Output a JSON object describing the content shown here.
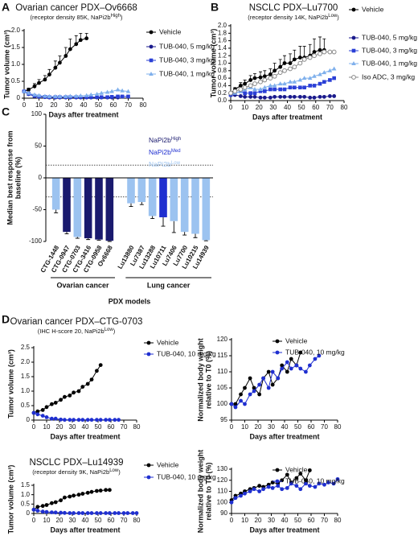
{
  "chart_data": [
    {
      "type": "line",
      "panel": "A",
      "title": "Ovarian cancer PDX–Ov6668",
      "subtitle": "(receptor density 85K, NaPi2b",
      "subtitle_sup": "High",
      "subtitle_end": ")",
      "xlabel": "Days after treatment",
      "ylabel": [
        "Tumor volume (cm³)"
      ],
      "x": [
        0,
        3,
        7,
        10,
        14,
        17,
        21,
        24,
        28,
        31,
        35,
        38,
        42,
        45,
        49,
        52,
        56,
        59,
        63,
        66,
        70
      ],
      "xlim": [
        0,
        80
      ],
      "xticks": [
        0,
        10,
        20,
        30,
        40,
        50,
        60,
        70,
        80
      ],
      "ylim": [
        0,
        2
      ],
      "yticks": [
        0,
        0.5,
        {
          "value": 1,
          "label": "1.0"
        },
        1.5,
        {
          "value": 2,
          "label": "2.0"
        }
      ],
      "series": [
        {
          "name": "Vehicle",
          "color": "#000000",
          "marker": "circle",
          "values": [
            0.2,
            0.25,
            0.35,
            0.45,
            0.55,
            0.7,
            0.9,
            1.05,
            1.25,
            1.45,
            1.6,
            1.72,
            1.77,
            null,
            null,
            null,
            null,
            null,
            null,
            null,
            null
          ],
          "errors": [
            0.02,
            0.05,
            0.08,
            0.1,
            0.12,
            0.15,
            0.2,
            0.2,
            0.25,
            0.3,
            0.25,
            0.2,
            0.15,
            null,
            null,
            null,
            null,
            null,
            null,
            null,
            null
          ]
        },
        {
          "name": "TUB-040, 5 mg/kg",
          "color": "#1a1a8c",
          "marker": "circle",
          "values": [
            0.2,
            0.12,
            0.06,
            0.04,
            0.03,
            0.02,
            0.02,
            0.02,
            0.02,
            0.02,
            0.02,
            0.02,
            0.02,
            0.02,
            0.02,
            0.02,
            0.02,
            0.02,
            0.02,
            null,
            null
          ]
        },
        {
          "name": "TUB-040, 3 mg/kg",
          "color": "#2a3fd6",
          "marker": "square",
          "values": [
            0.2,
            0.13,
            0.07,
            0.05,
            0.04,
            0.03,
            0.03,
            0.03,
            0.03,
            0.03,
            0.03,
            0.03,
            0.03,
            0.03,
            0.03,
            0.03,
            0.03,
            0.04,
            0.05,
            0.05,
            0.05
          ]
        },
        {
          "name": "TUB-040, 1 mg/kg",
          "color": "#7fb0ec",
          "marker": "triangle",
          "values": [
            0.2,
            0.15,
            0.1,
            0.08,
            0.06,
            0.05,
            0.05,
            0.05,
            0.05,
            0.06,
            0.06,
            0.07,
            0.08,
            0.1,
            0.12,
            0.15,
            0.18,
            0.2,
            0.25,
            0.22,
            0.2
          ]
        }
      ]
    },
    {
      "type": "line",
      "panel": "B",
      "title": "NSCLC PDX–Lu7700",
      "subtitle": "(receptor density 14K, NaPi2b",
      "subtitle_sup": "Low",
      "subtitle_end": ")",
      "xlabel": "Days after treatment",
      "ylabel": [
        "Tumor volume (cm³)"
      ],
      "x": [
        0,
        3,
        7,
        10,
        14,
        17,
        21,
        24,
        28,
        31,
        35,
        38,
        42,
        45,
        49,
        52,
        56,
        59,
        63,
        66,
        70,
        73
      ],
      "xlim": [
        0,
        80
      ],
      "xticks": [
        0,
        10,
        20,
        30,
        40,
        50,
        60,
        70,
        80
      ],
      "ylim": [
        0,
        2
      ],
      "yticks": [
        {
          "value": 0,
          "label": "0.0"
        },
        0.2,
        0.4,
        0.6,
        0.8,
        {
          "value": 1,
          "label": "1.0"
        },
        1.2,
        1.4,
        1.6,
        1.8,
        {
          "value": 2,
          "label": "2.0"
        }
      ],
      "series": [
        {
          "name": "Vehicle",
          "color": "#000000",
          "marker": "circle",
          "values": [
            0.2,
            0.3,
            0.4,
            0.45,
            0.55,
            0.6,
            0.62,
            0.65,
            0.7,
            0.8,
            0.9,
            1.0,
            1.0,
            1.1,
            1.15,
            1.15,
            1.2,
            1.3,
            1.35,
            1.35,
            null,
            null
          ],
          "errors": [
            0.02,
            0.05,
            0.08,
            0.1,
            0.12,
            0.12,
            0.15,
            0.15,
            0.15,
            0.2,
            0.2,
            0.2,
            0.25,
            0.25,
            0.3,
            0.3,
            0.3,
            0.35,
            0.35,
            0.3,
            null,
            null
          ]
        },
        {
          "name": "TUB-040, 5 mg/kg",
          "color": "#1a1a8c",
          "marker": "circle",
          "values": [
            0.15,
            0.15,
            0.12,
            0.1,
            0.1,
            0.1,
            0.08,
            0.08,
            0.08,
            0.1,
            0.1,
            0.1,
            0.1,
            0.1,
            0.1,
            0.1,
            0.08,
            0.08,
            0.1,
            0.1,
            0.12,
            0.12
          ]
        },
        {
          "name": "TUB-040, 3 mg/kg",
          "color": "#2a3fd6",
          "marker": "square",
          "values": [
            0.15,
            0.2,
            0.25,
            0.2,
            0.2,
            0.2,
            0.25,
            0.25,
            0.3,
            0.3,
            0.3,
            0.3,
            0.35,
            0.35,
            0.35,
            0.35,
            0.4,
            0.4,
            0.45,
            0.5,
            0.55,
            0.6
          ]
        },
        {
          "name": "TUB-040, 1 mg/kg",
          "color": "#7fb0ec",
          "marker": "triangle",
          "values": [
            0.2,
            0.2,
            0.25,
            0.3,
            0.35,
            0.3,
            0.3,
            0.35,
            0.4,
            0.4,
            0.45,
            0.45,
            0.5,
            0.5,
            0.55,
            0.6,
            0.6,
            0.65,
            0.7,
            0.75,
            0.8,
            0.85
          ]
        },
        {
          "name": "Iso ADC, 3 mg/kg",
          "color": "#888888",
          "marker": "open-circle",
          "values": [
            0.2,
            0.25,
            0.3,
            0.35,
            0.4,
            0.45,
            0.5,
            0.55,
            0.6,
            0.65,
            0.75,
            0.8,
            0.85,
            0.9,
            1.0,
            1.1,
            1.15,
            1.2,
            1.25,
            1.3,
            1.3,
            1.3
          ]
        }
      ]
    },
    {
      "type": "bar",
      "panel": "C",
      "xlabel": "PDX models",
      "ylabel": [
        "Median best response from",
        "baseline (%)"
      ],
      "ylim": [
        -100,
        100
      ],
      "yticks": [
        -100,
        -50,
        0,
        50,
        100
      ],
      "reference_lines": [
        20,
        -30
      ],
      "legend": [
        {
          "name": "NaPi2b",
          "sup": "High",
          "color": "#1a1a6e"
        },
        {
          "name": "NaPi2b",
          "sup": "Med",
          "color": "#1f2fd0"
        },
        {
          "name": "NaPi2b",
          "sup": "Low",
          "color": "#9cc3f0"
        }
      ],
      "groups": [
        {
          "name": "Ovarian cancer",
          "categories": [
            "CTG-1448",
            "CTG-0947",
            "CTG-0703",
            "CTG-3416",
            "CTG-0958",
            "Ov6668"
          ],
          "values": [
            -50,
            -85,
            -93,
            -95,
            -97,
            -99
          ],
          "errors": [
            5,
            3,
            2,
            2,
            1,
            1
          ],
          "colors": [
            "#9cc3f0",
            "#1a1a6e",
            "#9cc3f0",
            "#1a1a6e",
            "#1a1a6e",
            "#1a1a6e"
          ]
        },
        {
          "name": "Lung cancer",
          "categories": [
            "Lu13880",
            "Lu7387",
            "Lu13288",
            "Lu10711",
            "Lu7406",
            "Lu7700",
            "Lu10215",
            "Lu14939"
          ],
          "values": [
            -40,
            -38,
            -60,
            -62,
            -68,
            -85,
            -88,
            -98
          ],
          "errors": [
            5,
            4,
            4,
            14,
            18,
            5,
            6,
            1
          ],
          "colors": [
            "#9cc3f0",
            "#9cc3f0",
            "#9cc3f0",
            "#1f2fd0",
            "#9cc3f0",
            "#9cc3f0",
            "#9cc3f0",
            "#9cc3f0"
          ]
        }
      ]
    },
    {
      "type": "line",
      "panel": "D",
      "title": "Ovarian cancer PDX–CTG-0703",
      "subtitle": "(IHC H-score 20, NaPi2b",
      "subtitle_sup": "Low",
      "subtitle_end": ")",
      "xlabel": "Days after treatment",
      "ylabel": [
        "Tumor volume (cm³)"
      ],
      "x": [
        0,
        3,
        7,
        10,
        14,
        17,
        21,
        24,
        28,
        31,
        35,
        38,
        42,
        45,
        49,
        52,
        56,
        59,
        63,
        66
      ],
      "xlim": [
        0,
        80
      ],
      "xticks": [
        0,
        10,
        20,
        30,
        40,
        50,
        60,
        70,
        80
      ],
      "ylim": [
        0,
        2.5
      ],
      "yticks": [
        0,
        0.5,
        {
          "value": 1,
          "label": "1.0"
        },
        1.5,
        {
          "value": 2,
          "label": "2.0"
        },
        2.5
      ],
      "series": [
        {
          "name": "Vehicle",
          "color": "#000000",
          "marker": "circle",
          "values": [
            0.25,
            0.3,
            0.35,
            0.45,
            0.55,
            0.6,
            0.7,
            0.8,
            0.85,
            0.95,
            1.0,
            1.15,
            1.25,
            1.4,
            1.7,
            1.9,
            null,
            null,
            null,
            null
          ]
        },
        {
          "name": "TUB-040, 10 mg/kg",
          "color": "#1f2fd0",
          "marker": "circle",
          "values": [
            0.25,
            0.2,
            0.15,
            0.1,
            0.05,
            0.05,
            0.02,
            0.01,
            0.01,
            0.01,
            0.01,
            0.01,
            0.01,
            0.01,
            0.01,
            0.01,
            0.01,
            0.01,
            0.01,
            0.01
          ]
        }
      ]
    },
    {
      "type": "line",
      "xlabel": "Days after treatment",
      "ylabel": [
        "Normalized body weight",
        "relative to T0 (%)"
      ],
      "x": [
        0,
        3,
        7,
        10,
        14,
        17,
        21,
        24,
        28,
        31,
        35,
        38,
        42,
        45,
        49,
        52,
        56,
        59,
        63,
        66
      ],
      "xlim": [
        0,
        80
      ],
      "xticks": [
        0,
        10,
        20,
        30,
        40,
        50,
        60,
        70,
        80
      ],
      "ylim": [
        95,
        120
      ],
      "yticks": [
        95,
        100,
        105,
        110,
        115,
        120
      ],
      "series": [
        {
          "name": "Vehicle",
          "color": "#000000",
          "marker": "circle",
          "values": [
            100,
            100,
            103,
            105,
            108,
            105,
            103,
            108,
            110,
            106,
            108,
            112,
            110,
            114,
            112,
            116,
            null,
            null,
            null,
            null
          ]
        },
        {
          "name": "TUB-040, 10 mg/kg",
          "color": "#1f2fd0",
          "marker": "circle",
          "values": [
            100,
            99,
            101,
            100,
            103,
            104,
            106,
            108,
            105,
            110,
            108,
            111,
            113,
            111,
            112,
            111,
            110,
            112,
            114,
            115
          ]
        }
      ]
    },
    {
      "type": "line",
      "title": "NSCLC PDX–Lu14939",
      "subtitle": "(receptor density 9K, NaPi2b",
      "subtitle_sup": "Low",
      "subtitle_end": ")",
      "xlabel": "Days after treatment",
      "ylabel": [
        "Tumor volume (cm³)"
      ],
      "x": [
        0,
        3,
        7,
        10,
        14,
        17,
        21,
        24,
        28,
        31,
        35,
        38,
        42,
        45,
        49,
        52,
        56,
        59,
        63,
        66,
        70,
        73,
        77,
        80
      ],
      "xlim": [
        0,
        80
      ],
      "xticks": [
        0,
        10,
        20,
        30,
        40,
        50,
        60,
        70,
        80
      ],
      "ylim": [
        0,
        1.5
      ],
      "yticks": [
        0,
        0.5,
        {
          "value": 1,
          "label": "1.0"
        },
        1.5
      ],
      "series": [
        {
          "name": "Vehicle",
          "color": "#000000",
          "marker": "circle",
          "values": [
            0.2,
            0.35,
            0.4,
            0.45,
            0.55,
            0.6,
            0.7,
            0.85,
            0.9,
            0.95,
            1.0,
            1.05,
            1.1,
            1.15,
            1.2,
            1.22,
            1.25,
            1.25,
            null,
            null,
            null,
            null,
            null,
            null
          ]
        },
        {
          "name": "TUB-040, 10 mg/kg",
          "color": "#1f2fd0",
          "marker": "circle",
          "values": [
            0.2,
            0.15,
            0.1,
            0.08,
            0.06,
            0.05,
            0.04,
            0.03,
            0.02,
            0.02,
            0.02,
            0.02,
            0.02,
            0.02,
            0.02,
            0.02,
            0.02,
            0.02,
            0.02,
            0.02,
            0.02,
            0.02,
            0.02,
            0.02
          ]
        }
      ]
    },
    {
      "type": "line",
      "xlabel": "Days after treatment",
      "ylabel": [
        "Normalized body weight",
        "relative to T0 (%)"
      ],
      "x": [
        0,
        3,
        7,
        10,
        14,
        17,
        21,
        24,
        28,
        31,
        35,
        38,
        42,
        45,
        49,
        52,
        56,
        59,
        63,
        66,
        70,
        73,
        77,
        80
      ],
      "xlim": [
        0,
        80
      ],
      "xticks": [
        0,
        10,
        20,
        30,
        40,
        50,
        60,
        70,
        80
      ],
      "ylim": [
        90,
        130
      ],
      "yticks": [
        90,
        100,
        110,
        120,
        130
      ],
      "series": [
        {
          "name": "Vehicle",
          "color": "#000000",
          "marker": "circle",
          "values": [
            102,
            106,
            108,
            110,
            112,
            113,
            115,
            114,
            116,
            118,
            117,
            120,
            125,
            118,
            122,
            126,
            120,
            129,
            null,
            null,
            null,
            null,
            null,
            null
          ]
        },
        {
          "name": "TUB-040, 10 mg/kg",
          "color": "#1f2fd0",
          "marker": "circle",
          "values": [
            100,
            104,
            106,
            108,
            110,
            112,
            110,
            112,
            114,
            113,
            115,
            112,
            113,
            117,
            115,
            112,
            117,
            115,
            114,
            117,
            116,
            118,
            117,
            121
          ]
        }
      ]
    }
  ]
}
